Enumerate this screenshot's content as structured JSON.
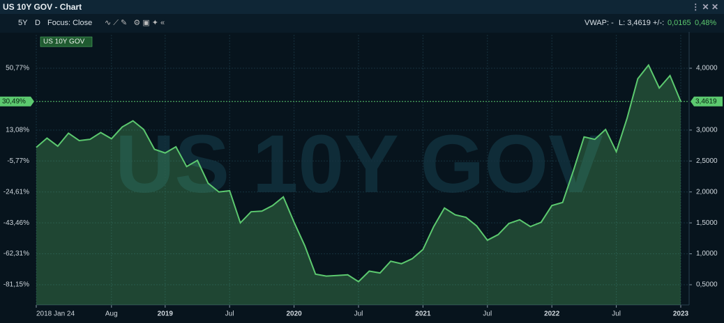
{
  "header": {
    "title": "US 10Y GOV - Chart"
  },
  "toolbar": {
    "period": "5Y",
    "interval": "D",
    "focus": "Focus: Close",
    "vwap": "VWAP: -",
    "last": "L: 3,4619",
    "change_prefix": "+/-:",
    "change": "0,0165",
    "change_pct": "0,48%"
  },
  "chart_data": {
    "type": "line",
    "watermark": "US 10Y GOV",
    "x": [
      "2018-01",
      "2018-02",
      "2018-03",
      "2018-04",
      "2018-05",
      "2018-06",
      "2018-07",
      "2018-08",
      "2018-09",
      "2018-10",
      "2018-11",
      "2018-12",
      "2019-01",
      "2019-02",
      "2019-03",
      "2019-04",
      "2019-05",
      "2019-06",
      "2019-07",
      "2019-08",
      "2019-09",
      "2019-10",
      "2019-11",
      "2019-12",
      "2020-01",
      "2020-02",
      "2020-03",
      "2020-04",
      "2020-05",
      "2020-06",
      "2020-07",
      "2020-08",
      "2020-09",
      "2020-10",
      "2020-11",
      "2020-12",
      "2021-01",
      "2021-02",
      "2021-03",
      "2021-04",
      "2021-05",
      "2021-06",
      "2021-07",
      "2021-08",
      "2021-09",
      "2021-10",
      "2021-11",
      "2021-12",
      "2022-01",
      "2022-02",
      "2022-03",
      "2022-04",
      "2022-05",
      "2022-06",
      "2022-07",
      "2022-08",
      "2022-09",
      "2022-10",
      "2022-11",
      "2022-12",
      "2023-01"
    ],
    "series": [
      {
        "name": "US 10Y GOV",
        "color": "#5cc96f",
        "axis": "y2",
        "values": [
          2.72,
          2.87,
          2.74,
          2.95,
          2.83,
          2.85,
          2.96,
          2.86,
          3.05,
          3.15,
          3.01,
          2.69,
          2.63,
          2.73,
          2.41,
          2.51,
          2.14,
          2.0,
          2.02,
          1.5,
          1.68,
          1.69,
          1.78,
          1.92,
          1.51,
          1.13,
          0.67,
          0.64,
          0.65,
          0.66,
          0.55,
          0.72,
          0.69,
          0.88,
          0.84,
          0.92,
          1.07,
          1.44,
          1.74,
          1.63,
          1.59,
          1.45,
          1.22,
          1.31,
          1.49,
          1.55,
          1.44,
          1.51,
          1.78,
          1.83,
          2.34,
          2.89,
          2.85,
          3.01,
          2.65,
          3.19,
          3.83,
          4.05,
          3.68,
          3.88,
          3.4619
        ]
      }
    ],
    "current": {
      "value": 3.4619,
      "label": "3,4619",
      "change_label": "30,49%"
    },
    "xticks": [
      {
        "value": "2018-01",
        "label": "2018 Jan 24"
      },
      {
        "value": "2018-08",
        "label": "Aug"
      },
      {
        "value": "2019-01",
        "label": "2019"
      },
      {
        "value": "2019-07",
        "label": "Jul"
      },
      {
        "value": "2020-01",
        "label": "2020"
      },
      {
        "value": "2020-07",
        "label": "Jul"
      },
      {
        "value": "2021-01",
        "label": "2021"
      },
      {
        "value": "2021-07",
        "label": "Jul"
      },
      {
        "value": "2022-01",
        "label": "2022"
      },
      {
        "value": "2022-07",
        "label": "Jul"
      },
      {
        "value": "2023-01",
        "label": "2023"
      }
    ],
    "ylim": [
      -93.45,
      71.13
    ],
    "yticks": [
      {
        "value": 50.77,
        "label": "50,77%"
      },
      {
        "value": 13.08,
        "label": "13,08%"
      },
      {
        "value": -5.77,
        "label": "-5,77%"
      },
      {
        "value": -24.61,
        "label": "-24,61%"
      },
      {
        "value": -43.46,
        "label": "-43,46%"
      },
      {
        "value": -62.31,
        "label": "-62,31%"
      },
      {
        "value": -81.15,
        "label": "-81,15%"
      }
    ],
    "y2lim": [
      0.174,
      4.54
    ],
    "y2ticks": [
      {
        "value": 4,
        "label": "4,0000"
      },
      {
        "value": 3,
        "label": "3,0000"
      },
      {
        "value": 2.5,
        "label": "2,5000"
      },
      {
        "value": 2,
        "label": "2,0000"
      },
      {
        "value": 1.5,
        "label": "1,5000"
      },
      {
        "value": 1,
        "label": "1,0000"
      },
      {
        "value": 0.5,
        "label": "0,5000"
      }
    ],
    "grid": true
  }
}
